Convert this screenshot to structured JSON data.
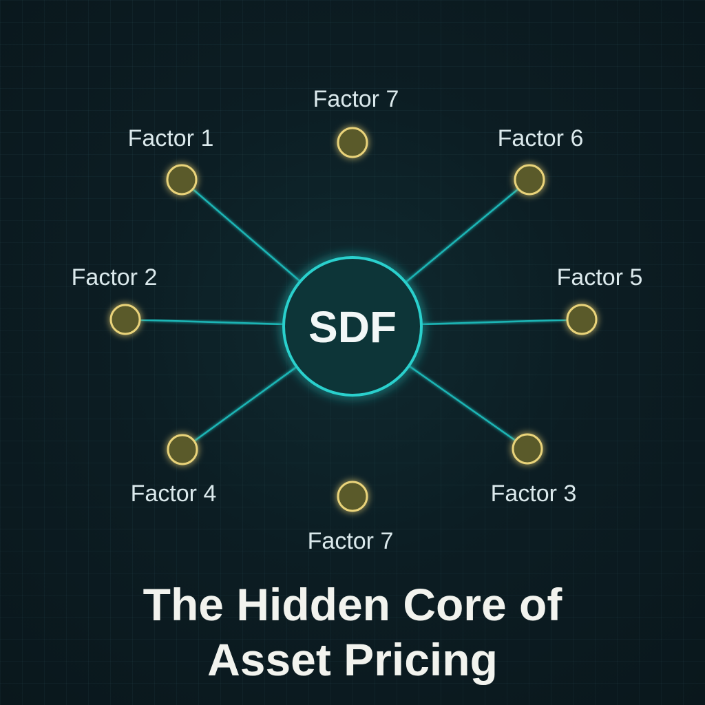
{
  "hub": {
    "label": "SDF"
  },
  "factors": [
    {
      "label": "Factor 7",
      "pos": "top"
    },
    {
      "label": "Factor 6",
      "pos": "top-right"
    },
    {
      "label": "Factor 5",
      "pos": "right"
    },
    {
      "label": "Factor 3",
      "pos": "bottom-right"
    },
    {
      "label": "Factor 7",
      "pos": "bottom"
    },
    {
      "label": "Factor 4",
      "pos": "bottom-left"
    },
    {
      "label": "Factor 2",
      "pos": "left"
    },
    {
      "label": "Factor 1",
      "pos": "top-left"
    }
  ],
  "title": {
    "line1": "The Hidden Core of",
    "line2": "Asset Pricing"
  },
  "colors": {
    "background": "#0c1c22",
    "spoke": "#1fb5b5",
    "hub_stroke": "#2ad0cd",
    "node_stroke": "#e9d37a",
    "node_fill": "#5a5a2a",
    "text": "#dbe9ec"
  }
}
